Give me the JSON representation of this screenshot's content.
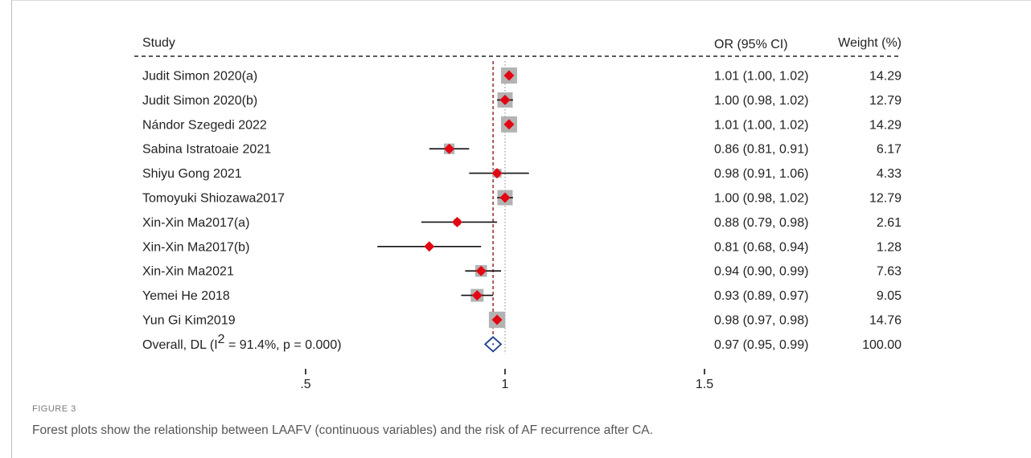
{
  "figure": {
    "label": "FIGURE 3",
    "caption": "Forest plots show the relationship between LAAFV (continuous variables) and the risk of AF recurrence after CA."
  },
  "chart_data": {
    "type": "forest",
    "headers": {
      "study": "Study",
      "or": "OR (95% CI)",
      "weight": "Weight (%)"
    },
    "null_value": 1,
    "overall_value": 0.97,
    "x_ticks": [
      {
        "value": 0.5,
        "label": ".5"
      },
      {
        "value": 1,
        "label": "1"
      },
      {
        "value": 1.5,
        "label": "1.5"
      }
    ],
    "rows": [
      {
        "study": "Judit Simon 2020(a)",
        "or": 1.01,
        "lo": 1.0,
        "hi": 1.02,
        "or_text": "1.01 (1.00, 1.02)",
        "weight": 14.29,
        "weight_text": "14.29"
      },
      {
        "study": "Judit Simon 2020(b)",
        "or": 1.0,
        "lo": 0.98,
        "hi": 1.02,
        "or_text": "1.00 (0.98, 1.02)",
        "weight": 12.79,
        "weight_text": "12.79"
      },
      {
        "study": "Nándor Szegedi 2022",
        "or": 1.01,
        "lo": 1.0,
        "hi": 1.02,
        "or_text": "1.01 (1.00, 1.02)",
        "weight": 14.29,
        "weight_text": "14.29"
      },
      {
        "study": "Sabina Istratoaie 2021",
        "or": 0.86,
        "lo": 0.81,
        "hi": 0.91,
        "or_text": "0.86 (0.81, 0.91)",
        "weight": 6.17,
        "weight_text": "6.17"
      },
      {
        "study": "Shiyu Gong 2021",
        "or": 0.98,
        "lo": 0.91,
        "hi": 1.06,
        "or_text": "0.98 (0.91, 1.06)",
        "weight": 4.33,
        "weight_text": "4.33"
      },
      {
        "study": "Tomoyuki Shiozawa2017",
        "or": 1.0,
        "lo": 0.98,
        "hi": 1.02,
        "or_text": "1.00 (0.98, 1.02)",
        "weight": 12.79,
        "weight_text": "12.79"
      },
      {
        "study": "Xin-Xin Ma2017(a)",
        "or": 0.88,
        "lo": 0.79,
        "hi": 0.98,
        "or_text": "0.88 (0.79, 0.98)",
        "weight": 2.61,
        "weight_text": "2.61"
      },
      {
        "study": "Xin-Xin Ma2017(b)",
        "or": 0.81,
        "lo": 0.68,
        "hi": 0.94,
        "or_text": "0.81 (0.68, 0.94)",
        "weight": 1.28,
        "weight_text": "1.28"
      },
      {
        "study": "Xin-Xin Ma2021",
        "or": 0.94,
        "lo": 0.9,
        "hi": 0.99,
        "or_text": "0.94 (0.90, 0.99)",
        "weight": 7.63,
        "weight_text": "7.63"
      },
      {
        "study": "Yemei He 2018",
        "or": 0.93,
        "lo": 0.89,
        "hi": 0.97,
        "or_text": "0.93 (0.89, 0.97)",
        "weight": 9.05,
        "weight_text": "9.05"
      },
      {
        "study": "Yun Gi Kim2019",
        "or": 0.98,
        "lo": 0.97,
        "hi": 0.98,
        "or_text": "0.98 (0.97, 0.98)",
        "weight": 14.76,
        "weight_text": "14.76"
      }
    ],
    "overall": {
      "label_prefix": "Overall, DL (I",
      "label_sup": "2",
      "label_suffix": " = 91.4%, p = 0.000)",
      "or": 0.97,
      "lo": 0.95,
      "hi": 0.99,
      "or_text": "0.97 (0.95, 0.99)",
      "weight_text": "100.00"
    },
    "colors": {
      "point": "#e30613",
      "box": "#b3b3b3",
      "overall_diamond": "#1f3f8f",
      "overall_line": "#8b1a1a",
      "null_line": "#999999",
      "text": "#222222"
    }
  }
}
